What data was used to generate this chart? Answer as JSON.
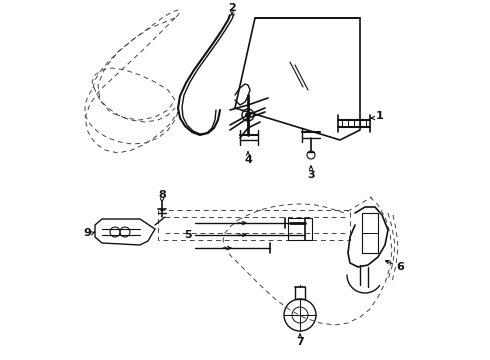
{
  "background": "#ffffff",
  "line_color": "#111111",
  "dashed_color": "#444444",
  "figsize": [
    4.9,
    3.6
  ],
  "dpi": 100,
  "top_section": {
    "door_dashed": [
      [
        0.38,
        0.42,
        0.4,
        0.44,
        0.5,
        0.6,
        0.68,
        0.7,
        0.65,
        0.58,
        0.52
      ],
      [
        0.68,
        0.76,
        0.83,
        0.88,
        0.92,
        0.94,
        0.9,
        0.82,
        0.72,
        0.62,
        0.52
      ]
    ],
    "door_dashed2": [
      [
        0.52,
        0.46,
        0.4,
        0.36,
        0.34,
        0.36,
        0.38
      ],
      [
        0.52,
        0.46,
        0.4,
        0.34,
        0.28,
        0.22,
        0.16
      ]
    ],
    "door_dashed3": [
      [
        0.38,
        0.4,
        0.42,
        0.46,
        0.5,
        0.54,
        0.58,
        0.62,
        0.66,
        0.7
      ],
      [
        0.16,
        0.14,
        0.13,
        0.13,
        0.14,
        0.15,
        0.17,
        0.2,
        0.24,
        0.28
      ]
    ]
  }
}
